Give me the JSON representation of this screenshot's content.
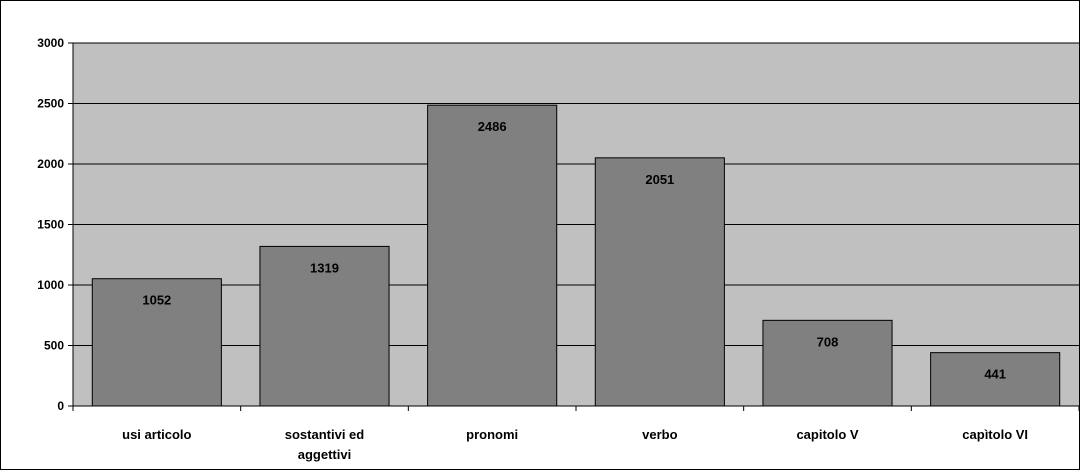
{
  "chart_data": {
    "type": "bar",
    "title": "",
    "xlabel": "",
    "ylabel": "",
    "ylim": [
      0,
      3000
    ],
    "yticks": [
      0,
      500,
      1000,
      1500,
      2000,
      2500,
      3000
    ],
    "grid": true,
    "legend": "none",
    "categories": [
      [
        "usi articolo"
      ],
      [
        "sostantivi ed",
        "aggettivi"
      ],
      [
        "pronomi"
      ],
      [
        "verbo"
      ],
      [
        "capitolo V"
      ],
      [
        "capìtolo VI"
      ]
    ],
    "series": [
      {
        "values": [
          1052,
          1319,
          2486,
          2051,
          708,
          441
        ]
      }
    ],
    "colors": {
      "plot_background": "#c0c0c0",
      "bar_fill": "#808080",
      "bar_stroke": "#000000",
      "gridline": "#000000"
    }
  }
}
